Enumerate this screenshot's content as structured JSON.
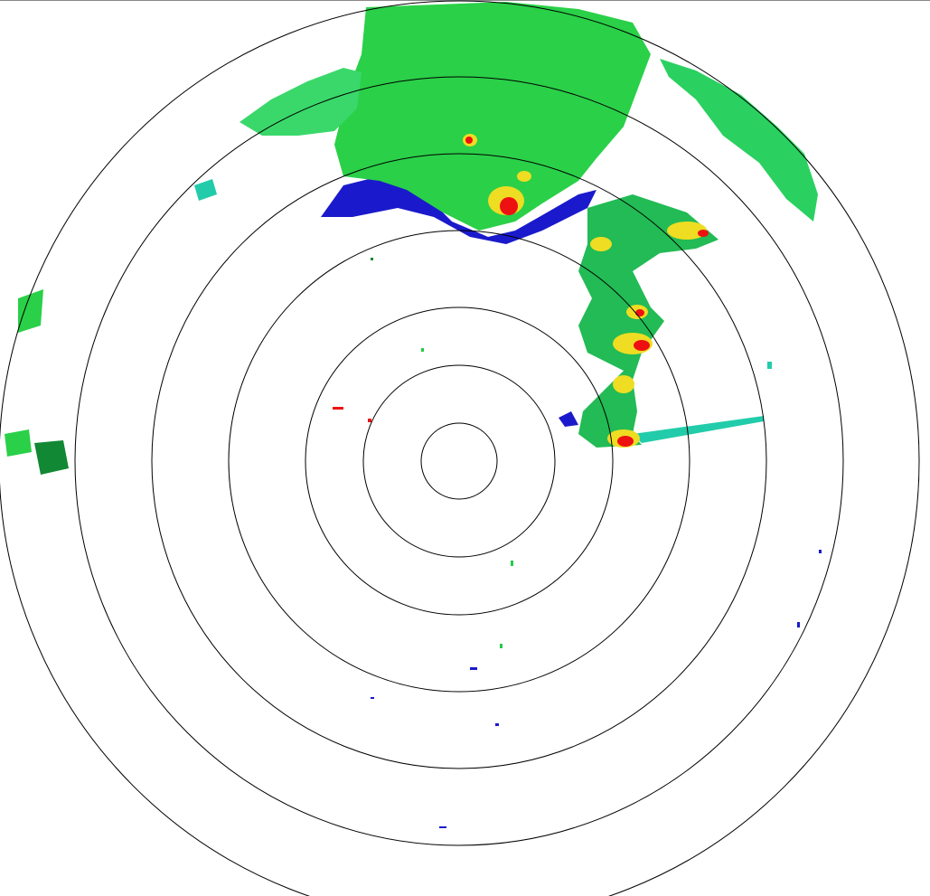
{
  "display": {
    "type": "radar-ppi",
    "background": "#ffffff",
    "ring_color": "#000000",
    "ring_count": 7
  },
  "reflectivity_colors": {
    "weak_blue": "#1a1acc",
    "light_teal": "#22ccaa",
    "green": "#22cc44",
    "dark_green": "#118833",
    "yellow": "#eedd22",
    "orange": "#ff8800",
    "red": "#ee1111"
  }
}
